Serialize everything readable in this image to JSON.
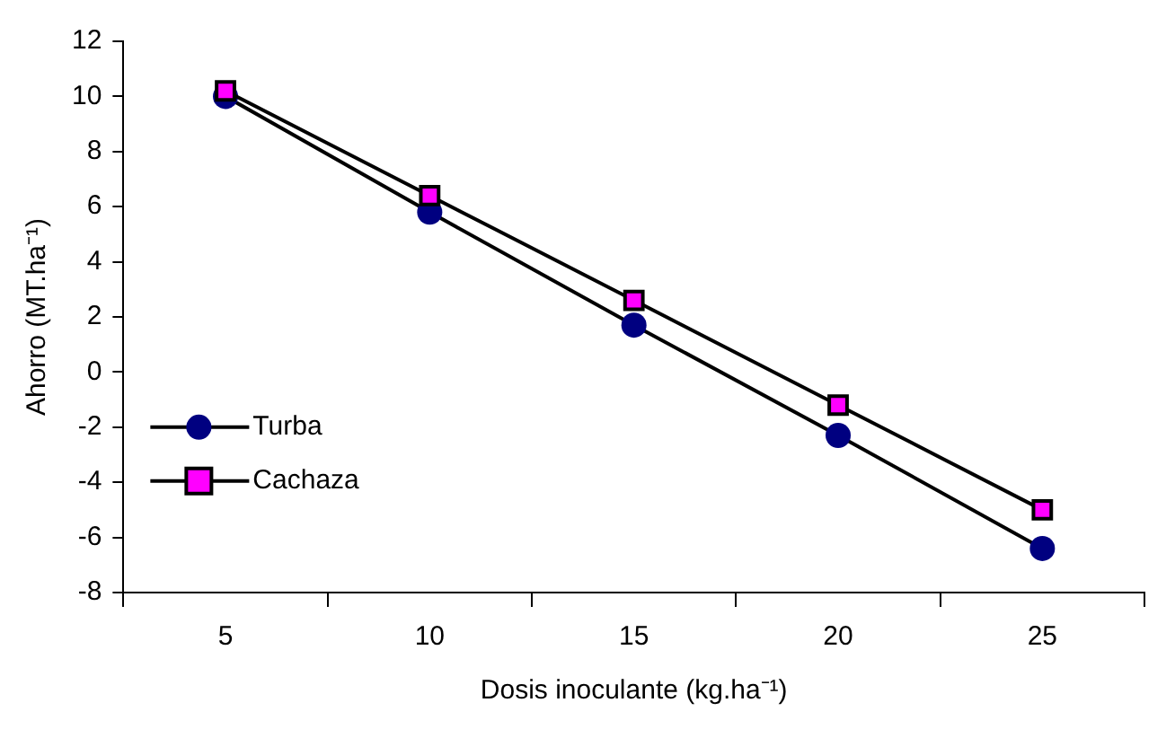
{
  "chart_data": {
    "type": "line",
    "xlabel": "Dosis inoculante (kg.ha⁻¹)",
    "ylabel": "Ahorro (MT.ha⁻¹)",
    "categories": [
      "5",
      "10",
      "15",
      "20",
      "25"
    ],
    "series": [
      {
        "name": "Turba",
        "color": "#000080",
        "marker": "circle",
        "values": [
          10.0,
          5.8,
          1.7,
          -2.3,
          -6.4
        ]
      },
      {
        "name": "Cachaza",
        "color": "#ff00ff",
        "marker": "square",
        "values": [
          10.2,
          6.4,
          2.6,
          -1.2,
          -5.0
        ]
      }
    ],
    "ylim": [
      -8,
      12
    ],
    "yticks": [
      -8,
      -6,
      -4,
      -2,
      0,
      2,
      4,
      6,
      8,
      10,
      12
    ],
    "grid": false,
    "legend": "left"
  }
}
